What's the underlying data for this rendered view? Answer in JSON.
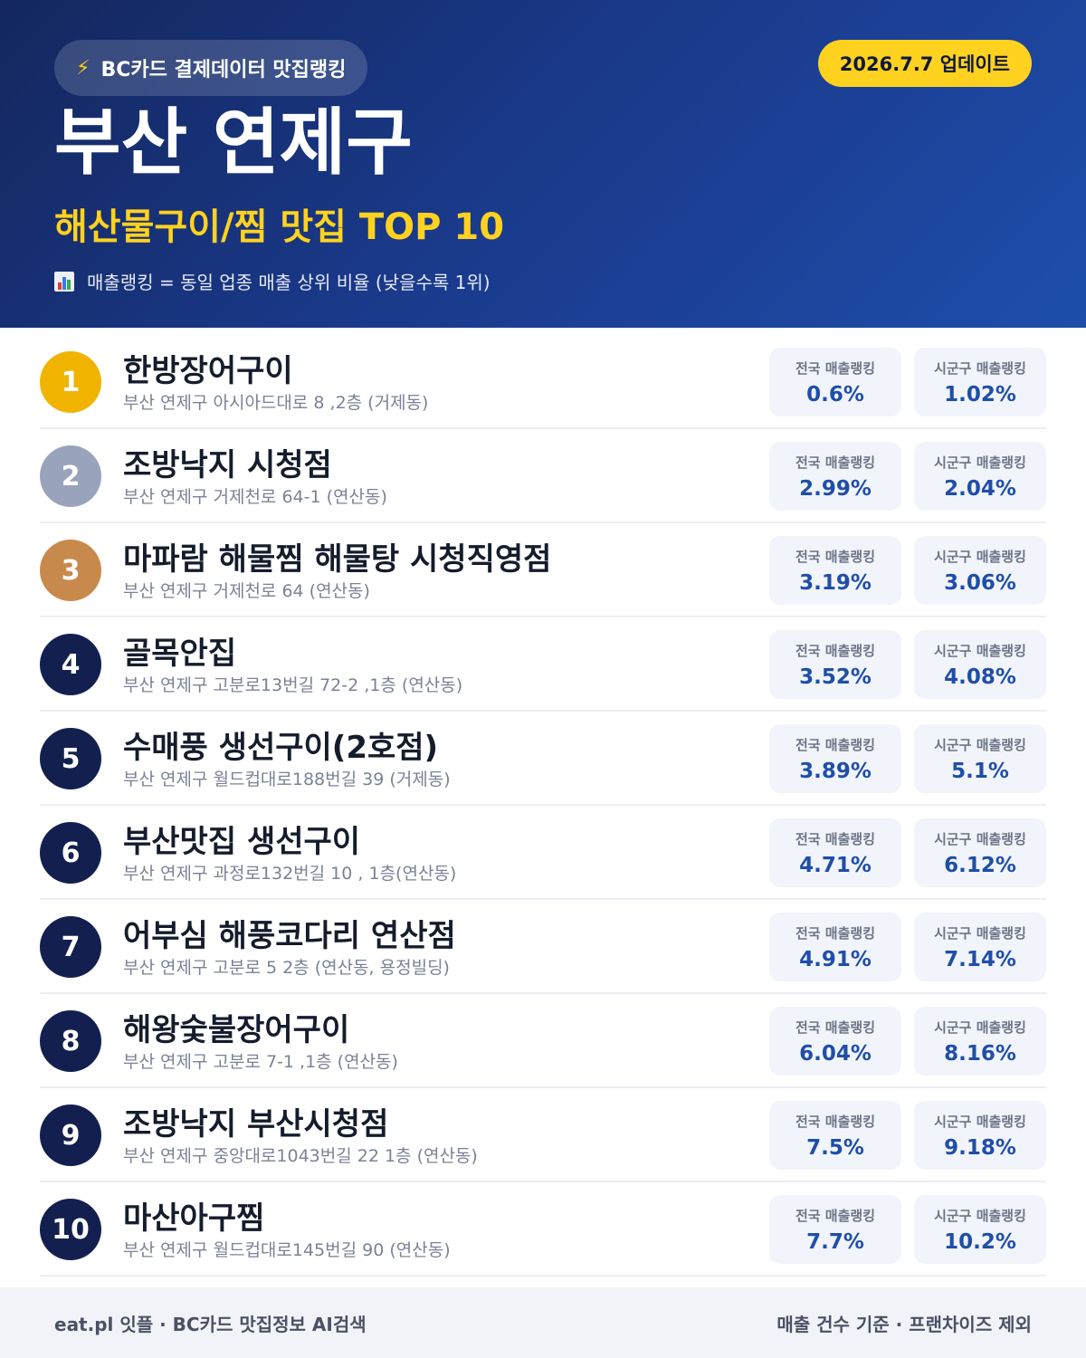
{
  "header": {
    "badge_icon": "lightning-bolt-icon",
    "badge_text": "BC카드 결제데이터 맛집랭킹",
    "update_label": "2026.7.7 업데이트",
    "region": "부산 연제구",
    "subtitle": "해산물구이/찜 맛집 TOP 10",
    "note_icon": "bar-chart-icon",
    "note": "매출랭킹 = 동일 업종 매출 상위 비율 (낮을수록 1위)"
  },
  "colors": {
    "header_gradient": [
      "#14275e",
      "#1e4eaa"
    ],
    "accent_yellow": "#ffd21f",
    "rank_gold": "#f0b400",
    "rank_silver": "#99a4bc",
    "rank_bronze": "#c88a4c",
    "rank_default": "#13204f",
    "value_blue": "#1f4ea8"
  },
  "stat_labels": {
    "national": "전국 매출랭킹",
    "local": "시군구 매출랭킹"
  },
  "restaurants": [
    {
      "rank": "1",
      "name": "한방장어구이",
      "address": "부산 연제구 아시아드대로 8 ,2층 (거제동)",
      "national": "0.6%",
      "local": "1.02%"
    },
    {
      "rank": "2",
      "name": "조방낙지 시청점",
      "address": "부산 연제구 거제천로 64-1 (연산동)",
      "national": "2.99%",
      "local": "2.04%"
    },
    {
      "rank": "3",
      "name": "마파람 해물찜 해물탕 시청직영점",
      "address": "부산 연제구 거제천로 64 (연산동)",
      "national": "3.19%",
      "local": "3.06%"
    },
    {
      "rank": "4",
      "name": "골목안집",
      "address": "부산 연제구 고분로13번길 72-2 ,1층 (연산동)",
      "national": "3.52%",
      "local": "4.08%"
    },
    {
      "rank": "5",
      "name": "수매풍 생선구이(2호점)",
      "address": "부산 연제구 월드컵대로188번길 39 (거제동)",
      "national": "3.89%",
      "local": "5.1%"
    },
    {
      "rank": "6",
      "name": "부산맛집 생선구이",
      "address": "부산 연제구 과정로132번길 10 , 1층(연산동)",
      "national": "4.71%",
      "local": "6.12%"
    },
    {
      "rank": "7",
      "name": "어부심 해풍코다리 연산점",
      "address": "부산 연제구 고분로 5 2층 (연산동, 용정빌딩)",
      "national": "4.91%",
      "local": "7.14%"
    },
    {
      "rank": "8",
      "name": "해왕숯불장어구이",
      "address": "부산 연제구 고분로 7-1 ,1층 (연산동)",
      "national": "6.04%",
      "local": "8.16%"
    },
    {
      "rank": "9",
      "name": "조방낙지 부산시청점",
      "address": "부산 연제구 중앙대로1043번길 22 1층 (연산동)",
      "national": "7.5%",
      "local": "9.18%"
    },
    {
      "rank": "10",
      "name": "마산아구찜",
      "address": "부산 연제구 월드컵대로145번길 90 (연산동)",
      "national": "7.7%",
      "local": "10.2%"
    }
  ],
  "footer": {
    "left": "eat.pl 잇플 · BC카드 맛집정보 AI검색",
    "right": "매출 건수 기준 · 프랜차이즈 제외"
  }
}
